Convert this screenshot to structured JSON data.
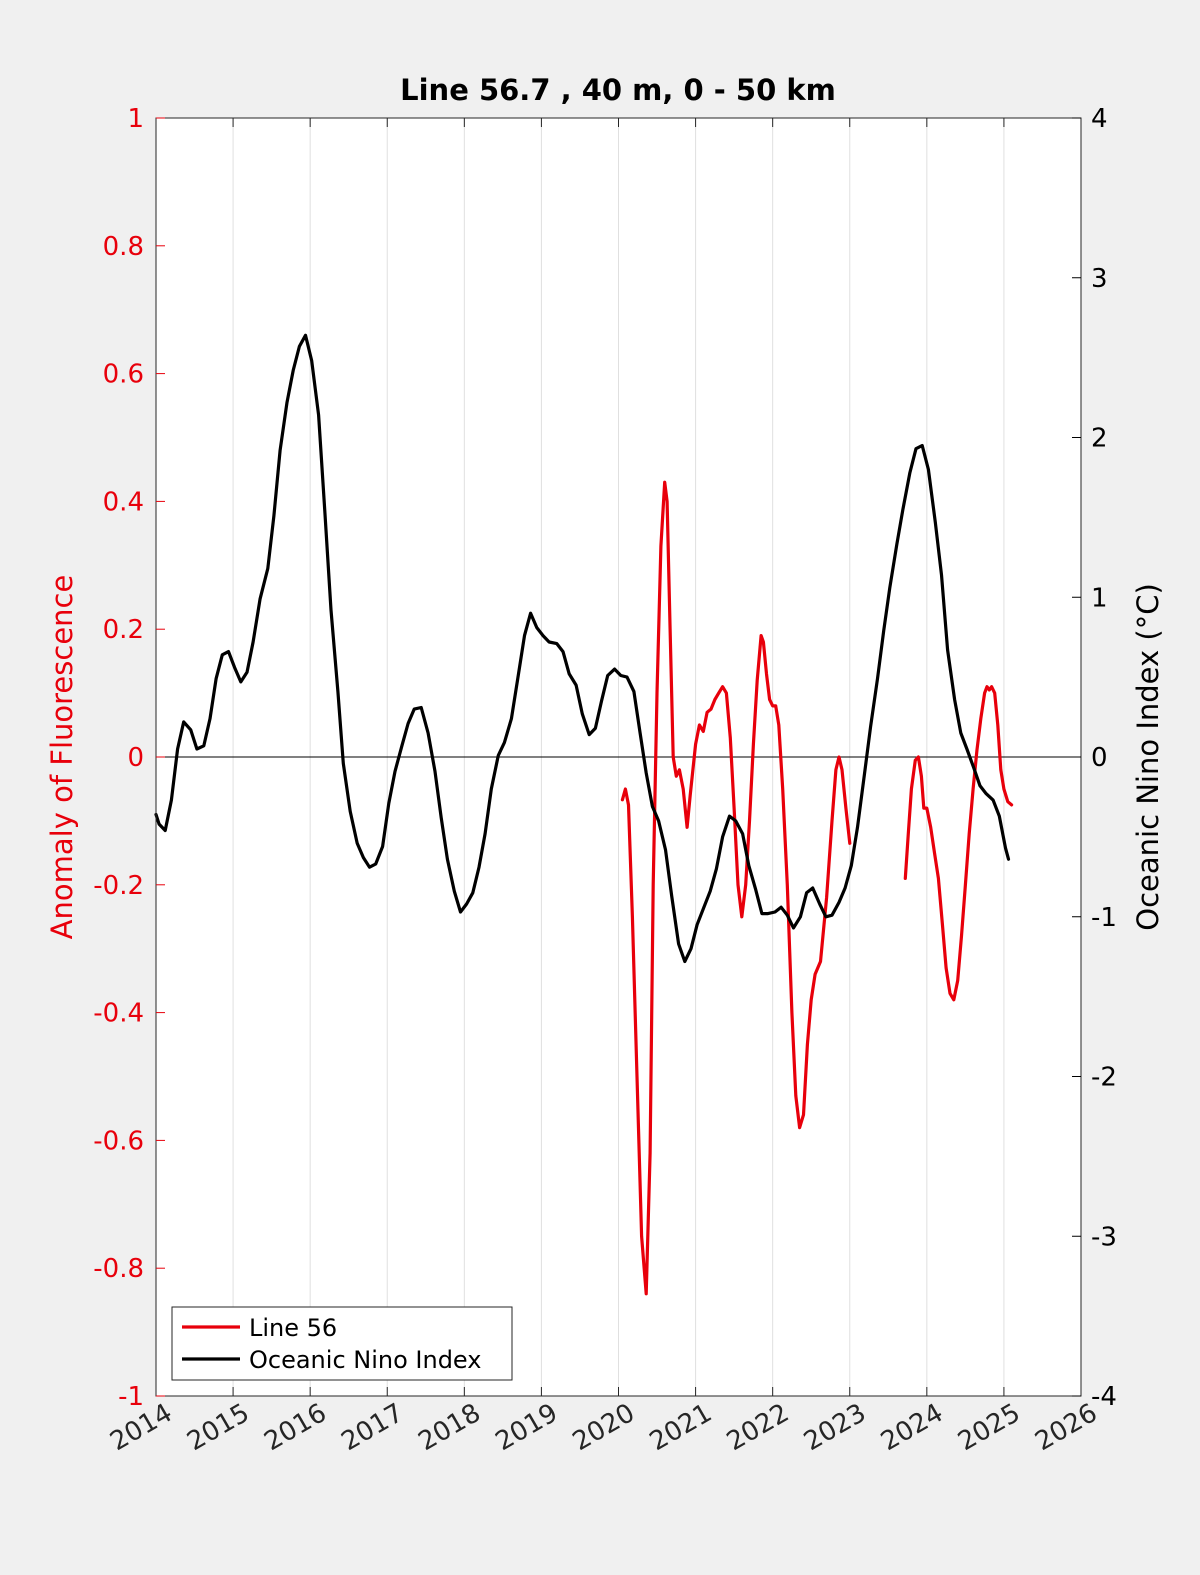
{
  "chart_data": {
    "type": "line",
    "title": "Line 56.7 , 40 m, 0 - 50 km",
    "xlabel": "",
    "ylabel": "Anomaly of Fluorescence",
    "y2label": "Oceanic Nino Index (°C)",
    "xlim": [
      2014,
      2026
    ],
    "ylim": [
      -1,
      1
    ],
    "y2lim": [
      -4,
      4
    ],
    "x_ticks": [
      "2014",
      "2015",
      "2016",
      "2017",
      "2018",
      "2019",
      "2020",
      "2021",
      "2022",
      "2023",
      "2024",
      "2025",
      "2026"
    ],
    "y_ticks": [
      "1",
      "0.8",
      "0.6",
      "0.4",
      "0.2",
      "0",
      "-0.2",
      "-0.4",
      "-0.6",
      "-0.8",
      "-1"
    ],
    "y2_ticks": [
      "4",
      "3",
      "2",
      "1",
      "0",
      "-1",
      "-2",
      "-3",
      "-4"
    ],
    "grid": "vertical",
    "legend_position": "bottom-left",
    "colors": {
      "line56": "#e8000b",
      "oni": "#000000",
      "left_axis": "#e8000b",
      "right_axis": "#000000",
      "background": "#f0f0f0",
      "plot_bg": "#ffffff",
      "grid": "#e0e0e0"
    },
    "series": [
      {
        "name": "Line 56",
        "axis": "left",
        "segments": [
          [
            [
              2020.05,
              -0.067
            ],
            [
              2020.09,
              -0.05
            ],
            [
              2020.13,
              -0.075
            ],
            [
              2020.18,
              -0.25
            ],
            [
              2020.24,
              -0.5
            ],
            [
              2020.3,
              -0.75
            ],
            [
              2020.36,
              -0.84
            ],
            [
              2020.41,
              -0.62
            ],
            [
              2020.45,
              -0.2
            ],
            [
              2020.5,
              0.1
            ],
            [
              2020.55,
              0.33
            ],
            [
              2020.6,
              0.43
            ],
            [
              2020.63,
              0.4
            ],
            [
              2020.67,
              0.2
            ],
            [
              2020.71,
              0.0
            ],
            [
              2020.75,
              -0.03
            ],
            [
              2020.79,
              -0.02
            ],
            [
              2020.84,
              -0.05
            ],
            [
              2020.89,
              -0.11
            ],
            [
              2020.93,
              -0.06
            ],
            [
              2021.0,
              0.02
            ],
            [
              2021.05,
              0.05
            ],
            [
              2021.1,
              0.04
            ],
            [
              2021.15,
              0.07
            ],
            [
              2021.2,
              0.075
            ],
            [
              2021.25,
              0.09
            ],
            [
              2021.3,
              0.1
            ],
            [
              2021.35,
              0.11
            ],
            [
              2021.4,
              0.1
            ],
            [
              2021.45,
              0.03
            ],
            [
              2021.5,
              -0.08
            ],
            [
              2021.55,
              -0.2
            ],
            [
              2021.6,
              -0.25
            ],
            [
              2021.65,
              -0.2
            ],
            [
              2021.7,
              -0.1
            ],
            [
              2021.75,
              0.02
            ],
            [
              2021.8,
              0.12
            ],
            [
              2021.85,
              0.19
            ],
            [
              2021.88,
              0.18
            ],
            [
              2021.92,
              0.13
            ],
            [
              2021.96,
              0.09
            ],
            [
              2022.0,
              0.08
            ],
            [
              2022.04,
              0.08
            ],
            [
              2022.08,
              0.05
            ],
            [
              2022.13,
              -0.05
            ],
            [
              2022.19,
              -0.2
            ],
            [
              2022.25,
              -0.4
            ],
            [
              2022.3,
              -0.53
            ],
            [
              2022.35,
              -0.58
            ],
            [
              2022.4,
              -0.56
            ],
            [
              2022.45,
              -0.45
            ],
            [
              2022.5,
              -0.38
            ],
            [
              2022.55,
              -0.34
            ],
            [
              2022.62,
              -0.32
            ],
            [
              2022.7,
              -0.22
            ],
            [
              2022.77,
              -0.1
            ],
            [
              2022.82,
              -0.02
            ],
            [
              2022.86,
              0.0
            ],
            [
              2022.9,
              -0.02
            ],
            [
              2022.95,
              -0.08
            ],
            [
              2023.0,
              -0.135
            ]
          ],
          [
            [
              2023.72,
              -0.19
            ],
            [
              2023.76,
              -0.12
            ],
            [
              2023.8,
              -0.05
            ],
            [
              2023.85,
              -0.005
            ],
            [
              2023.89,
              0.0
            ],
            [
              2023.93,
              -0.03
            ],
            [
              2023.96,
              -0.08
            ],
            [
              2024.0,
              -0.08
            ],
            [
              2024.05,
              -0.11
            ],
            [
              2024.1,
              -0.15
            ],
            [
              2024.15,
              -0.19
            ],
            [
              2024.2,
              -0.26
            ],
            [
              2024.25,
              -0.33
            ],
            [
              2024.3,
              -0.37
            ],
            [
              2024.35,
              -0.38
            ],
            [
              2024.4,
              -0.35
            ],
            [
              2024.45,
              -0.28
            ],
            [
              2024.5,
              -0.2
            ],
            [
              2024.55,
              -0.12
            ],
            [
              2024.6,
              -0.05
            ],
            [
              2024.65,
              0.01
            ],
            [
              2024.7,
              0.06
            ],
            [
              2024.75,
              0.1
            ],
            [
              2024.78,
              0.11
            ],
            [
              2024.81,
              0.105
            ],
            [
              2024.84,
              0.11
            ],
            [
              2024.88,
              0.1
            ],
            [
              2024.92,
              0.05
            ],
            [
              2024.96,
              -0.02
            ],
            [
              2025.0,
              -0.05
            ],
            [
              2025.05,
              -0.07
            ],
            [
              2025.1,
              -0.075
            ]
          ]
        ]
      },
      {
        "name": "Oceanic Nino Index",
        "axis": "right",
        "segments": [
          [
            [
              2014.0,
              -0.36
            ],
            [
              2014.04,
              -0.42
            ],
            [
              2014.12,
              -0.46
            ],
            [
              2014.2,
              -0.27
            ],
            [
              2014.28,
              0.05
            ],
            [
              2014.36,
              0.22
            ],
            [
              2014.45,
              0.17
            ],
            [
              2014.53,
              0.05
            ],
            [
              2014.62,
              0.07
            ],
            [
              2014.7,
              0.24
            ],
            [
              2014.78,
              0.49
            ],
            [
              2014.86,
              0.64
            ],
            [
              2014.94,
              0.66
            ],
            [
              2015.02,
              0.56
            ],
            [
              2015.1,
              0.47
            ],
            [
              2015.18,
              0.53
            ],
            [
              2015.26,
              0.72
            ],
            [
              2015.35,
              0.99
            ],
            [
              2015.45,
              1.18
            ],
            [
              2015.53,
              1.51
            ],
            [
              2015.61,
              1.92
            ],
            [
              2015.7,
              2.22
            ],
            [
              2015.78,
              2.42
            ],
            [
              2015.86,
              2.57
            ],
            [
              2015.94,
              2.64
            ],
            [
              2016.02,
              2.48
            ],
            [
              2016.11,
              2.14
            ],
            [
              2016.19,
              1.54
            ],
            [
              2016.27,
              0.92
            ],
            [
              2016.36,
              0.41
            ],
            [
              2016.43,
              -0.04
            ],
            [
              2016.52,
              -0.34
            ],
            [
              2016.61,
              -0.54
            ],
            [
              2016.69,
              -0.63
            ],
            [
              2016.77,
              -0.69
            ],
            [
              2016.85,
              -0.67
            ],
            [
              2016.94,
              -0.56
            ],
            [
              2017.02,
              -0.29
            ],
            [
              2017.1,
              -0.09
            ],
            [
              2017.19,
              0.07
            ],
            [
              2017.27,
              0.21
            ],
            [
              2017.35,
              0.3
            ],
            [
              2017.44,
              0.31
            ],
            [
              2017.53,
              0.15
            ],
            [
              2017.62,
              -0.09
            ],
            [
              2017.7,
              -0.38
            ],
            [
              2017.78,
              -0.64
            ],
            [
              2017.87,
              -0.84
            ],
            [
              2017.95,
              -0.97
            ],
            [
              2018.03,
              -0.92
            ],
            [
              2018.11,
              -0.85
            ],
            [
              2018.19,
              -0.69
            ],
            [
              2018.27,
              -0.48
            ],
            [
              2018.35,
              -0.2
            ],
            [
              2018.44,
              0.01
            ],
            [
              2018.52,
              0.09
            ],
            [
              2018.61,
              0.24
            ],
            [
              2018.69,
              0.48
            ],
            [
              2018.78,
              0.76
            ],
            [
              2018.86,
              0.9
            ],
            [
              2018.94,
              0.81
            ],
            [
              2019.02,
              0.76
            ],
            [
              2019.1,
              0.72
            ],
            [
              2019.2,
              0.71
            ],
            [
              2019.28,
              0.66
            ],
            [
              2019.36,
              0.52
            ],
            [
              2019.45,
              0.45
            ],
            [
              2019.53,
              0.27
            ],
            [
              2019.62,
              0.14
            ],
            [
              2019.7,
              0.18
            ],
            [
              2019.78,
              0.35
            ],
            [
              2019.86,
              0.51
            ],
            [
              2019.95,
              0.55
            ],
            [
              2020.03,
              0.51
            ],
            [
              2020.11,
              0.5
            ],
            [
              2020.2,
              0.41
            ],
            [
              2020.28,
              0.15
            ],
            [
              2020.36,
              -0.1
            ],
            [
              2020.44,
              -0.31
            ],
            [
              2020.52,
              -0.4
            ],
            [
              2020.61,
              -0.58
            ],
            [
              2020.69,
              -0.87
            ],
            [
              2020.78,
              -1.17
            ],
            [
              2020.86,
              -1.28
            ],
            [
              2020.94,
              -1.2
            ],
            [
              2021.02,
              -1.05
            ],
            [
              2021.1,
              -0.95
            ],
            [
              2021.19,
              -0.84
            ],
            [
              2021.27,
              -0.7
            ],
            [
              2021.35,
              -0.5
            ],
            [
              2021.44,
              -0.37
            ],
            [
              2021.52,
              -0.4
            ],
            [
              2021.61,
              -0.48
            ],
            [
              2021.69,
              -0.68
            ],
            [
              2021.78,
              -0.83
            ],
            [
              2021.86,
              -0.98
            ],
            [
              2021.94,
              -0.98
            ],
            [
              2022.03,
              -0.97
            ],
            [
              2022.11,
              -0.94
            ],
            [
              2022.19,
              -0.99
            ],
            [
              2022.27,
              -1.07
            ],
            [
              2022.36,
              -1.0
            ],
            [
              2022.44,
              -0.85
            ],
            [
              2022.52,
              -0.82
            ],
            [
              2022.61,
              -0.92
            ],
            [
              2022.69,
              -1.0
            ],
            [
              2022.77,
              -0.99
            ],
            [
              2022.86,
              -0.91
            ],
            [
              2022.94,
              -0.82
            ],
            [
              2023.02,
              -0.68
            ],
            [
              2023.1,
              -0.44
            ],
            [
              2023.19,
              -0.11
            ],
            [
              2023.27,
              0.19
            ],
            [
              2023.36,
              0.49
            ],
            [
              2023.44,
              0.79
            ],
            [
              2023.52,
              1.06
            ],
            [
              2023.61,
              1.33
            ],
            [
              2023.69,
              1.55
            ],
            [
              2023.78,
              1.78
            ],
            [
              2023.86,
              1.93
            ],
            [
              2023.94,
              1.95
            ],
            [
              2024.02,
              1.8
            ],
            [
              2024.11,
              1.47
            ],
            [
              2024.19,
              1.14
            ],
            [
              2024.27,
              0.67
            ],
            [
              2024.36,
              0.36
            ],
            [
              2024.44,
              0.15
            ],
            [
              2024.52,
              0.05
            ],
            [
              2024.61,
              -0.07
            ],
            [
              2024.69,
              -0.18
            ],
            [
              2024.77,
              -0.23
            ],
            [
              2024.86,
              -0.27
            ],
            [
              2024.94,
              -0.37
            ],
            [
              2025.02,
              -0.57
            ],
            [
              2025.06,
              -0.64
            ]
          ]
        ]
      }
    ]
  }
}
